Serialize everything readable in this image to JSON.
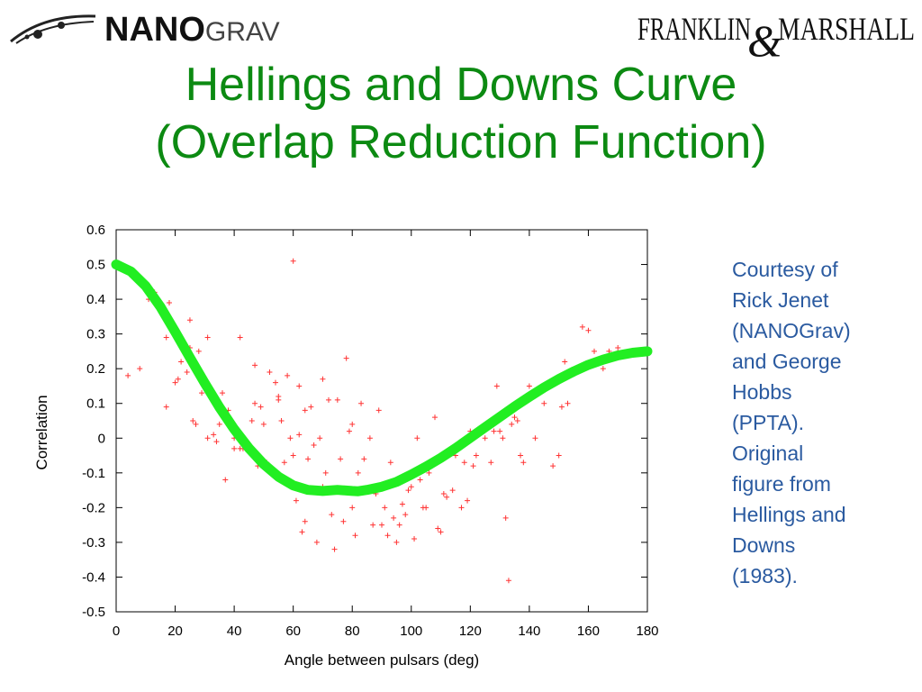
{
  "logos": {
    "nanograv": {
      "text_main": "NANO",
      "text_sub": "GRAV"
    },
    "franklin_marshall": {
      "text_left": "FRANKLIN",
      "ampersand": "&",
      "text_right": "MARSHALL"
    }
  },
  "title": {
    "line1": "Hellings and Downs Curve",
    "line2": "(Overlap Reduction Function)"
  },
  "caption_lines": [
    "Courtesy of",
    "Rick Jenet",
    "(NANOGrav)",
    "and George",
    "Hobbs",
    "(PPTA).",
    "Original",
    "figure from",
    "Hellings and",
    "Downs",
    "(1983)."
  ],
  "colors": {
    "title": "#0c8a12",
    "caption": "#2a5aa0",
    "curve": "#22ee22",
    "points": "#ff3333"
  },
  "chart_data": {
    "type": "scatter",
    "xlabel": "Angle between pulsars (deg)",
    "ylabel": "Correlation",
    "xlim": [
      0,
      180
    ],
    "ylim": [
      -0.5,
      0.6
    ],
    "xticks": [
      0,
      20,
      40,
      60,
      80,
      100,
      120,
      140,
      160,
      180
    ],
    "yticks": [
      -0.5,
      -0.4,
      -0.3,
      -0.2,
      -0.1,
      0,
      0.1,
      0.2,
      0.3,
      0.4,
      0.5,
      0.6
    ],
    "xtick_labels": [
      "0",
      "20",
      "40",
      "60",
      "80",
      "100",
      "120",
      "140",
      "160",
      "180"
    ],
    "ytick_labels": [
      "-0.5",
      "-0.4",
      "-0.3",
      "-0.2",
      "-0.1",
      "0",
      "0.1",
      "0.2",
      "0.3",
      "0.4",
      "0.5",
      "0.6"
    ],
    "grid": false,
    "curve": {
      "x": [
        0,
        5,
        10,
        15,
        20,
        25,
        30,
        35,
        40,
        45,
        50,
        55,
        60,
        65,
        70,
        75,
        80,
        82,
        85,
        90,
        95,
        100,
        105,
        110,
        115,
        120,
        125,
        130,
        135,
        140,
        145,
        150,
        155,
        160,
        165,
        170,
        175,
        180
      ],
      "y": [
        0.5,
        0.48,
        0.438,
        0.378,
        0.306,
        0.232,
        0.159,
        0.089,
        0.026,
        -0.029,
        -0.075,
        -0.111,
        -0.136,
        -0.149,
        -0.152,
        -0.149,
        -0.152,
        -0.153,
        -0.149,
        -0.14,
        -0.126,
        -0.105,
        -0.082,
        -0.057,
        -0.029,
        0.001,
        0.031,
        0.061,
        0.091,
        0.119,
        0.146,
        0.17,
        0.192,
        0.211,
        0.226,
        0.238,
        0.246,
        0.25
      ]
    },
    "points": [
      [
        4,
        0.18
      ],
      [
        8,
        0.2
      ],
      [
        11,
        0.4
      ],
      [
        13,
        0.42
      ],
      [
        14,
        0.38
      ],
      [
        17,
        0.09
      ],
      [
        17,
        0.29
      ],
      [
        18,
        0.39
      ],
      [
        20,
        0.16
      ],
      [
        21,
        0.17
      ],
      [
        22,
        0.22
      ],
      [
        22,
        0.28
      ],
      [
        24,
        0.19
      ],
      [
        25,
        0.34
      ],
      [
        25,
        0.26
      ],
      [
        26,
        0.22
      ],
      [
        26,
        0.05
      ],
      [
        27,
        0.04
      ],
      [
        28,
        0.25
      ],
      [
        29,
        0.13
      ],
      [
        30,
        0.15
      ],
      [
        31,
        0.0
      ],
      [
        31,
        0.29
      ],
      [
        33,
        0.01
      ],
      [
        34,
        -0.01
      ],
      [
        35,
        0.04
      ],
      [
        36,
        0.13
      ],
      [
        37,
        -0.12
      ],
      [
        38,
        0.08
      ],
      [
        39,
        0.03
      ],
      [
        40,
        0.0
      ],
      [
        40,
        -0.03
      ],
      [
        42,
        -0.03
      ],
      [
        42,
        0.29
      ],
      [
        43,
        -0.03
      ],
      [
        44,
        -0.02
      ],
      [
        46,
        0.05
      ],
      [
        47,
        0.21
      ],
      [
        47,
        0.1
      ],
      [
        48,
        -0.08
      ],
      [
        49,
        0.09
      ],
      [
        50,
        0.04
      ],
      [
        51,
        -0.07
      ],
      [
        52,
        0.19
      ],
      [
        53,
        -0.1
      ],
      [
        54,
        0.16
      ],
      [
        55,
        0.11
      ],
      [
        55,
        0.12
      ],
      [
        56,
        0.05
      ],
      [
        57,
        -0.07
      ],
      [
        58,
        0.18
      ],
      [
        59,
        0.0
      ],
      [
        60,
        0.51
      ],
      [
        60,
        -0.05
      ],
      [
        61,
        -0.18
      ],
      [
        62,
        0.15
      ],
      [
        62,
        0.01
      ],
      [
        63,
        -0.27
      ],
      [
        64,
        0.08
      ],
      [
        64,
        -0.24
      ],
      [
        65,
        -0.06
      ],
      [
        66,
        0.09
      ],
      [
        67,
        -0.02
      ],
      [
        68,
        -0.3
      ],
      [
        69,
        0.0
      ],
      [
        70,
        -0.14
      ],
      [
        70,
        0.17
      ],
      [
        71,
        -0.1
      ],
      [
        72,
        0.11
      ],
      [
        73,
        -0.22
      ],
      [
        74,
        -0.32
      ],
      [
        75,
        0.11
      ],
      [
        76,
        -0.06
      ],
      [
        77,
        -0.24
      ],
      [
        78,
        0.23
      ],
      [
        79,
        0.02
      ],
      [
        80,
        0.04
      ],
      [
        80,
        -0.2
      ],
      [
        81,
        -0.28
      ],
      [
        82,
        -0.1
      ],
      [
        83,
        0.1
      ],
      [
        84,
        -0.06
      ],
      [
        85,
        -0.15
      ],
      [
        86,
        0.0
      ],
      [
        87,
        -0.25
      ],
      [
        88,
        -0.16
      ],
      [
        89,
        0.08
      ],
      [
        90,
        -0.25
      ],
      [
        91,
        -0.2
      ],
      [
        92,
        -0.28
      ],
      [
        93,
        -0.07
      ],
      [
        94,
        -0.23
      ],
      [
        95,
        -0.3
      ],
      [
        96,
        -0.25
      ],
      [
        97,
        -0.19
      ],
      [
        98,
        -0.22
      ],
      [
        99,
        -0.15
      ],
      [
        100,
        -0.14
      ],
      [
        101,
        -0.29
      ],
      [
        102,
        0.0
      ],
      [
        103,
        -0.12
      ],
      [
        104,
        -0.2
      ],
      [
        105,
        -0.2
      ],
      [
        106,
        -0.1
      ],
      [
        107,
        -0.08
      ],
      [
        108,
        0.06
      ],
      [
        109,
        -0.26
      ],
      [
        110,
        -0.27
      ],
      [
        111,
        -0.16
      ],
      [
        112,
        -0.17
      ],
      [
        114,
        -0.15
      ],
      [
        115,
        -0.05
      ],
      [
        117,
        -0.2
      ],
      [
        118,
        -0.07
      ],
      [
        119,
        -0.18
      ],
      [
        120,
        0.02
      ],
      [
        121,
        -0.08
      ],
      [
        122,
        -0.05
      ],
      [
        124,
        0.02
      ],
      [
        125,
        0.0
      ],
      [
        127,
        -0.07
      ],
      [
        128,
        0.02
      ],
      [
        129,
        0.15
      ],
      [
        130,
        0.02
      ],
      [
        131,
        0.0
      ],
      [
        132,
        -0.23
      ],
      [
        133,
        -0.41
      ],
      [
        134,
        0.04
      ],
      [
        135,
        0.06
      ],
      [
        136,
        0.05
      ],
      [
        137,
        -0.05
      ],
      [
        138,
        -0.07
      ],
      [
        140,
        0.15
      ],
      [
        142,
        0.0
      ],
      [
        145,
        0.1
      ],
      [
        148,
        -0.08
      ],
      [
        150,
        -0.05
      ],
      [
        151,
        0.09
      ],
      [
        152,
        0.22
      ],
      [
        153,
        0.1
      ],
      [
        158,
        0.32
      ],
      [
        160,
        0.31
      ],
      [
        162,
        0.25
      ],
      [
        165,
        0.2
      ],
      [
        167,
        0.25
      ],
      [
        170,
        0.26
      ]
    ]
  }
}
